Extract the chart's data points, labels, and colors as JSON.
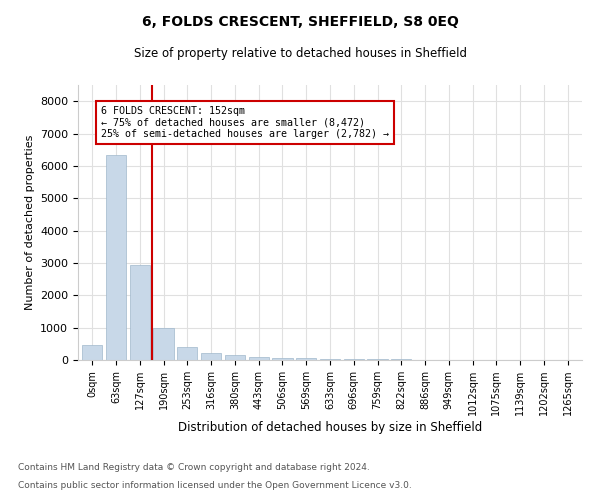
{
  "title": "6, FOLDS CRESCENT, SHEFFIELD, S8 0EQ",
  "subtitle": "Size of property relative to detached houses in Sheffield",
  "xlabel": "Distribution of detached houses by size in Sheffield",
  "ylabel": "Number of detached properties",
  "annotation_title": "6 FOLDS CRESCENT: 152sqm",
  "annotation_line1": "← 75% of detached houses are smaller (8,472)",
  "annotation_line2": "25% of semi-detached houses are larger (2,782) →",
  "property_size": 152,
  "footnote1": "Contains HM Land Registry data © Crown copyright and database right 2024.",
  "footnote2": "Contains public sector information licensed under the Open Government Licence v3.0.",
  "bar_color": "#c8d8e8",
  "bar_edge_color": "#a0b8cc",
  "vline_color": "#cc0000",
  "annotation_box_color": "#cc0000",
  "grid_color": "#e0e0e0",
  "background_color": "#ffffff",
  "ylim": [
    0,
    8500
  ],
  "yticks": [
    0,
    1000,
    2000,
    3000,
    4000,
    5000,
    6000,
    7000,
    8000
  ],
  "bin_labels": [
    "0sqm",
    "63sqm",
    "127sqm",
    "190sqm",
    "253sqm",
    "316sqm",
    "380sqm",
    "443sqm",
    "506sqm",
    "569sqm",
    "633sqm",
    "696sqm",
    "759sqm",
    "822sqm",
    "886sqm",
    "949sqm",
    "1012sqm",
    "1075sqm",
    "1139sqm",
    "1202sqm",
    "1265sqm"
  ],
  "bin_values": [
    470,
    6350,
    2950,
    1000,
    390,
    210,
    140,
    90,
    65,
    50,
    40,
    30,
    22,
    18,
    14,
    11,
    9,
    7,
    5,
    4,
    3
  ]
}
